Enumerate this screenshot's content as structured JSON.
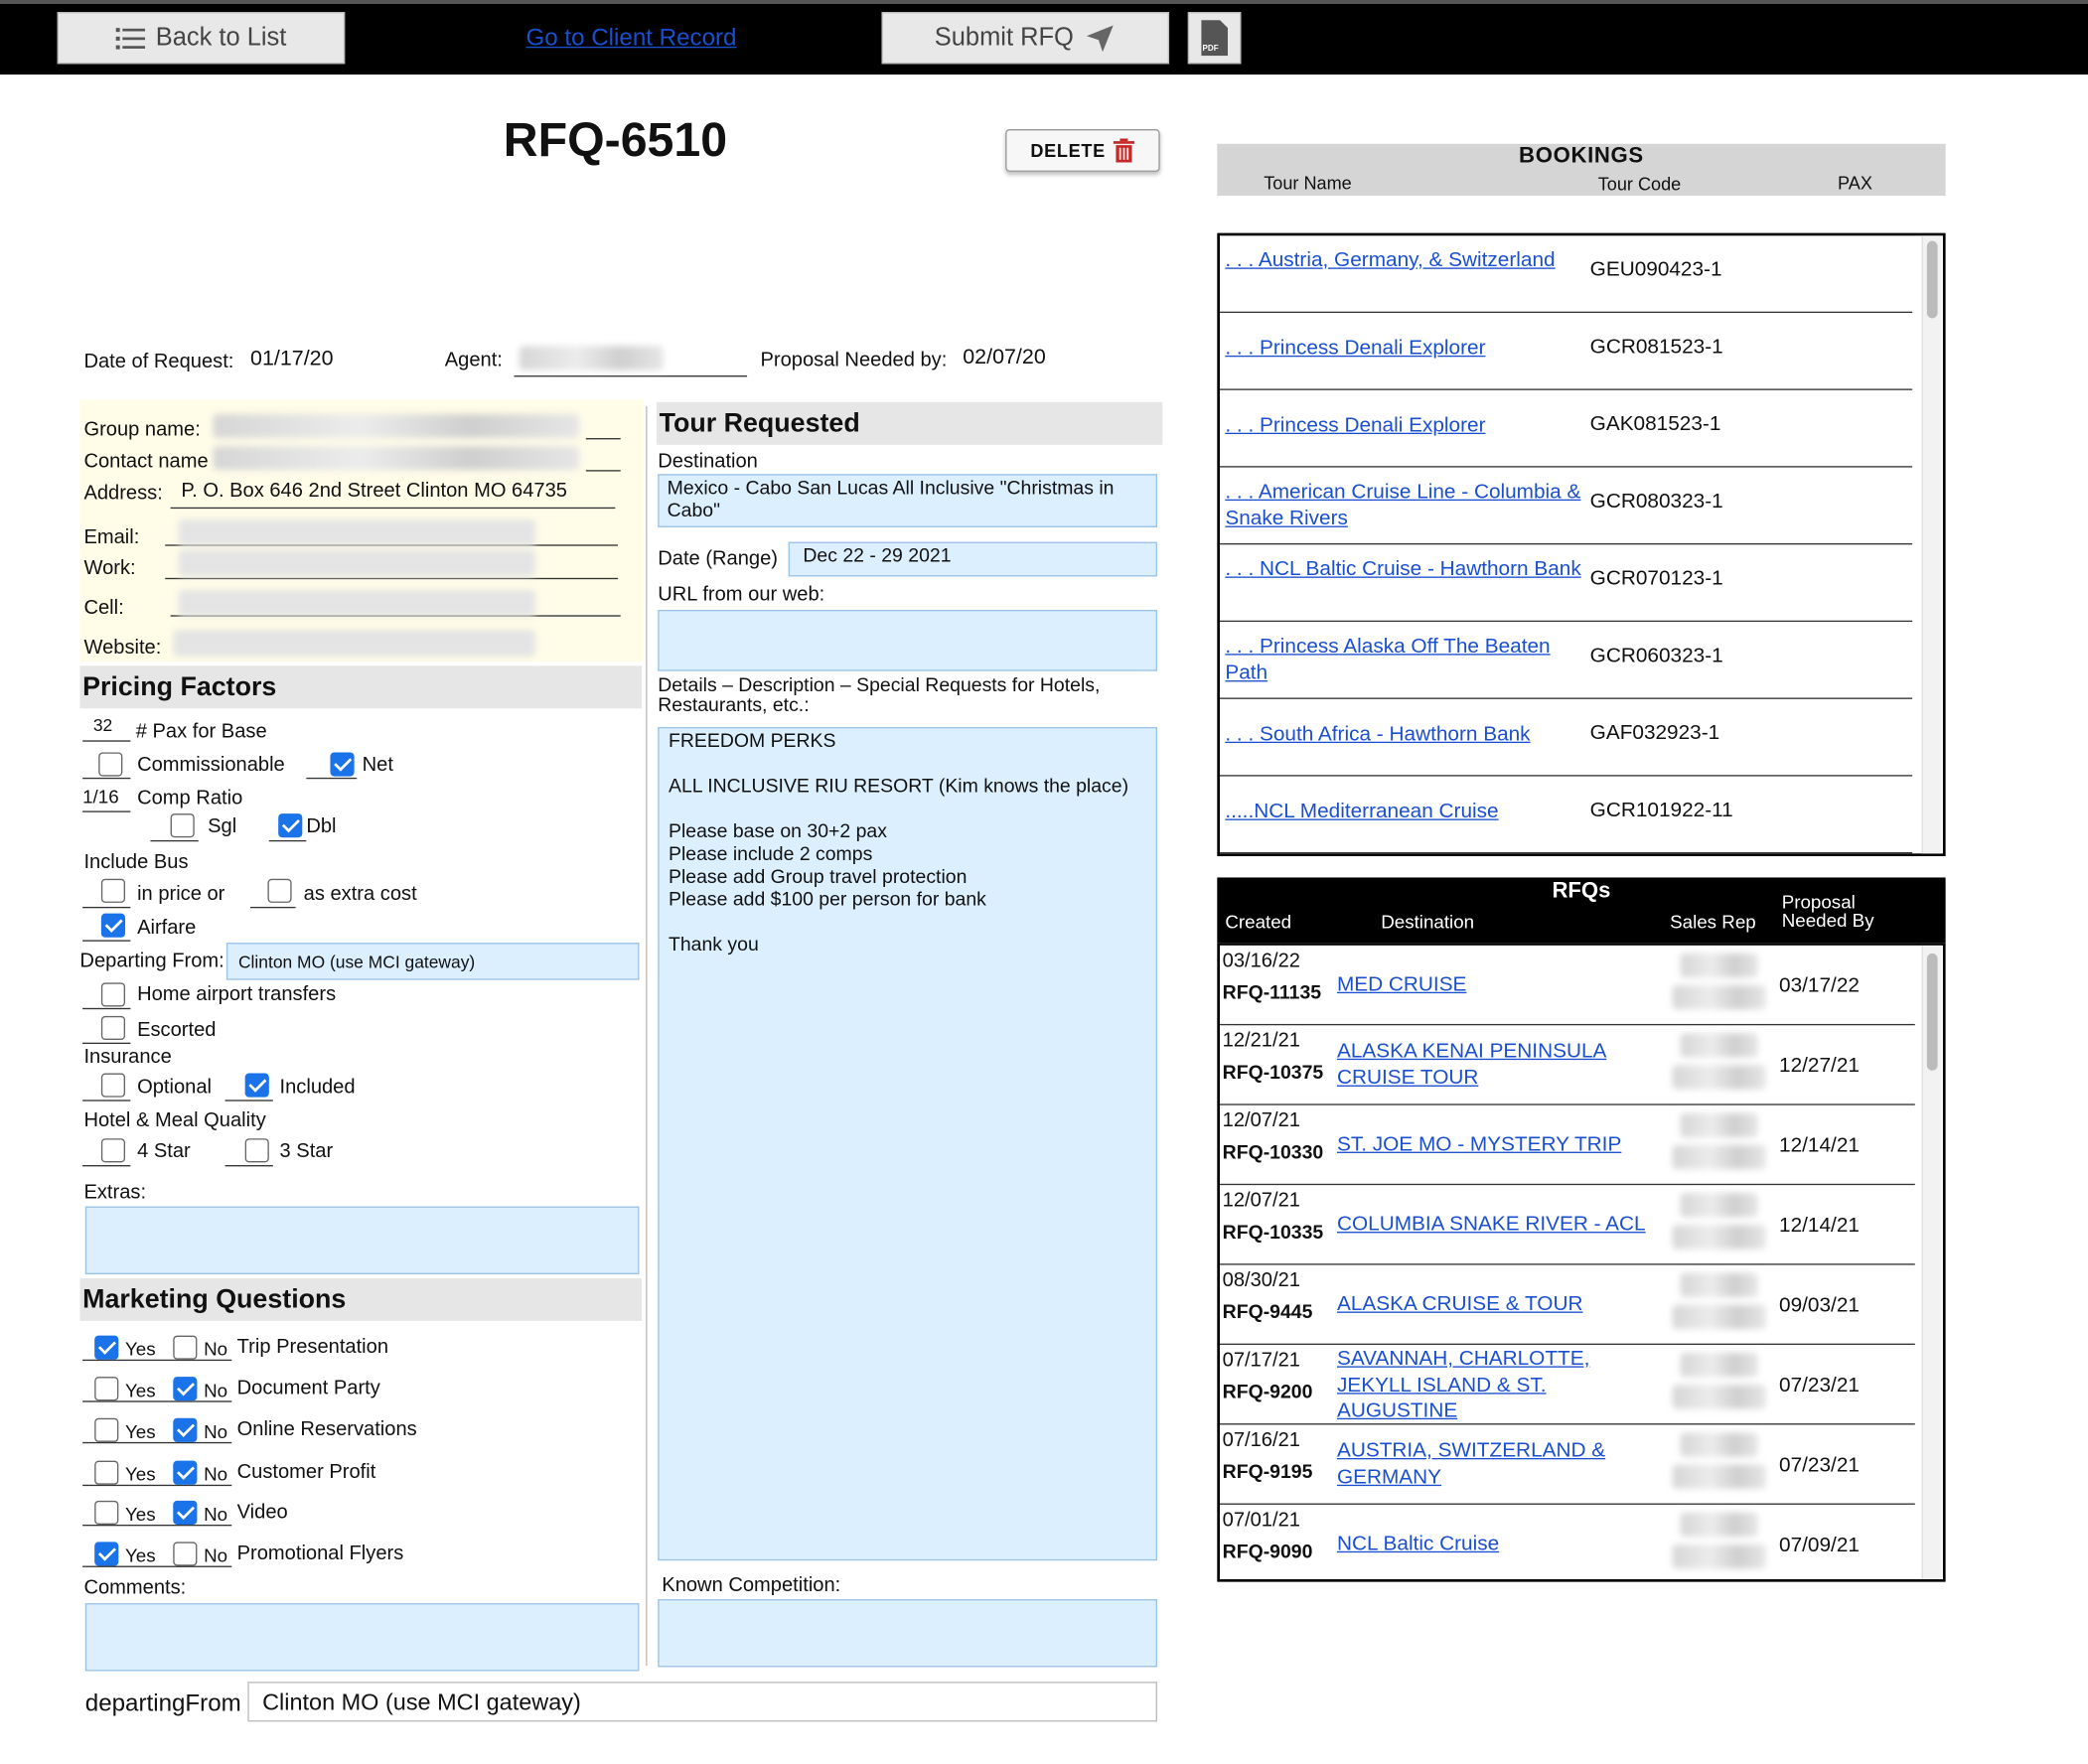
{
  "toolbar": {
    "back_label": "Back to List",
    "client_link": "Go to Client Record",
    "submit_label": "Submit RFQ",
    "pdf_label": "PDF"
  },
  "rfq": {
    "title": "RFQ-6510",
    "delete_label": "DELETE",
    "date_label": "Date of Request:",
    "date_value": "01/17/20",
    "agent_label": "Agent:",
    "proposal_label": "Proposal Needed by:",
    "proposal_value": "02/07/20"
  },
  "client": {
    "group_label": "Group name:",
    "contact_label": "Contact name",
    "address_label": "Address:",
    "address_value": "P. O. Box 646 2nd Street Clinton MO 64735",
    "email_label": "Email:",
    "work_label": "Work:",
    "cell_label": "Cell:",
    "website_label": "Website:"
  },
  "pricing": {
    "heading": "Pricing Factors",
    "pax_value": "32",
    "pax_label": "# Pax for Base",
    "commissionable_label": "Commissionable",
    "net_label": "Net",
    "comp_value": "1/16",
    "comp_label": "Comp Ratio",
    "sgl_label": "Sgl",
    "dbl_label": "Dbl",
    "bus_label": "Include Bus",
    "in_price_label": "in price or",
    "extra_cost_label": "as extra cost",
    "airfare_label": "Airfare",
    "departing_label": "Departing From:",
    "departing_value": "Clinton MO (use MCI gateway)",
    "home_airport_label": "Home airport transfers",
    "escorted_label": "Escorted",
    "insurance_label": "Insurance",
    "optional_label": "Optional",
    "included_label": "Included",
    "quality_label": "Hotel & Meal Quality",
    "four_star_label": "4 Star",
    "three_star_label": "3 Star",
    "extras_label": "Extras:"
  },
  "marketing": {
    "heading": "Marketing Questions",
    "yes": "Yes",
    "no": "No",
    "items": [
      {
        "label": "Trip Presentation"
      },
      {
        "label": "Document Party"
      },
      {
        "label": "Online Reservations"
      },
      {
        "label": "Customer Profit"
      },
      {
        "label": "Video"
      },
      {
        "label": "Promotional Flyers"
      }
    ],
    "comments_label": "Comments:"
  },
  "tour": {
    "heading": "Tour Requested",
    "destination_label": "Destination",
    "destination_value": "Mexico - Cabo San Lucas All Inclusive \"Christmas in Cabo\"",
    "date_label": "Date (Range)",
    "date_value": "Dec 22 - 29  2021",
    "url_label": "URL from our web:",
    "details_label": "Details – Description – Special Requests for Hotels, Restaurants, etc.:",
    "details_value": "FREEDOM PERKS\n\nALL INCLUSIVE RIU RESORT (Kim knows the place)\n\nPlease base on 30+2 pax\nPlease include 2 comps\nPlease add Group travel protection\nPlease add $100 per person for bank\n\nThank you",
    "competition_label": "Known Competition:"
  },
  "footer": {
    "departing_label": "departingFrom",
    "departing_value": "Clinton MO (use MCI gateway)"
  },
  "bookings": {
    "heading": "BOOKINGS",
    "col_name": "Tour Name",
    "col_code": "Tour Code",
    "col_pax": "PAX",
    "rows": [
      {
        "name": ". . . Austria, Germany, & Switzerland",
        "code": "GEU090423-1"
      },
      {
        "name": ". . . Princess Denali Explorer",
        "code": "GCR081523-1"
      },
      {
        "name": ". . . Princess Denali Explorer",
        "code": "GAK081523-1"
      },
      {
        "name": ". . . American Cruise Line - Columbia & Snake Rivers",
        "code": "GCR080323-1"
      },
      {
        "name": ". . . NCL Baltic Cruise - Hawthorn Bank",
        "code": "GCR070123-1"
      },
      {
        "name": ". . . Princess Alaska Off The Beaten Path",
        "code": "GCR060323-1"
      },
      {
        "name": ". . . South Africa - Hawthorn Bank",
        "code": "GAF032923-1"
      },
      {
        "name": ".....NCL Mediterranean Cruise",
        "code": "GCR101922-11"
      }
    ]
  },
  "rfqs": {
    "heading": "RFQs",
    "col_created": "Created",
    "col_destination": "Destination",
    "col_rep": "Sales Rep",
    "col_proposal": "Proposal Needed By",
    "rows": [
      {
        "created": "03/16/22",
        "id": "RFQ-11135",
        "destination": "MED CRUISE",
        "needed": "03/17/22"
      },
      {
        "created": "12/21/21",
        "id": "RFQ-10375",
        "destination": "ALASKA KENAI PENINSULA CRUISE TOUR",
        "needed": "12/27/21"
      },
      {
        "created": "12/07/21",
        "id": "RFQ-10330",
        "destination": "ST. JOE MO - MYSTERY TRIP",
        "needed": "12/14/21"
      },
      {
        "created": "12/07/21",
        "id": "RFQ-10335",
        "destination": "COLUMBIA SNAKE RIVER - ACL",
        "needed": "12/14/21"
      },
      {
        "created": "08/30/21",
        "id": "RFQ-9445",
        "destination": "ALASKA CRUISE & TOUR",
        "needed": "09/03/21"
      },
      {
        "created": "07/17/21",
        "id": "RFQ-9200",
        "destination": "SAVANNAH, CHARLOTTE, JEKYLL ISLAND & ST. AUGUSTINE",
        "needed": "07/23/21"
      },
      {
        "created": "07/16/21",
        "id": "RFQ-9195",
        "destination": "AUSTRIA, SWITZERLAND & GERMANY",
        "needed": "07/23/21"
      },
      {
        "created": "07/01/21",
        "id": "RFQ-9090",
        "destination": "NCL Baltic Cruise",
        "needed": "07/09/21"
      }
    ]
  },
  "colors": {
    "field_bg": "#dcefff",
    "client_bg": "#fffde8",
    "link": "#1a4fd0",
    "check": "#1a73e8",
    "delete_icon": "#c62828"
  }
}
